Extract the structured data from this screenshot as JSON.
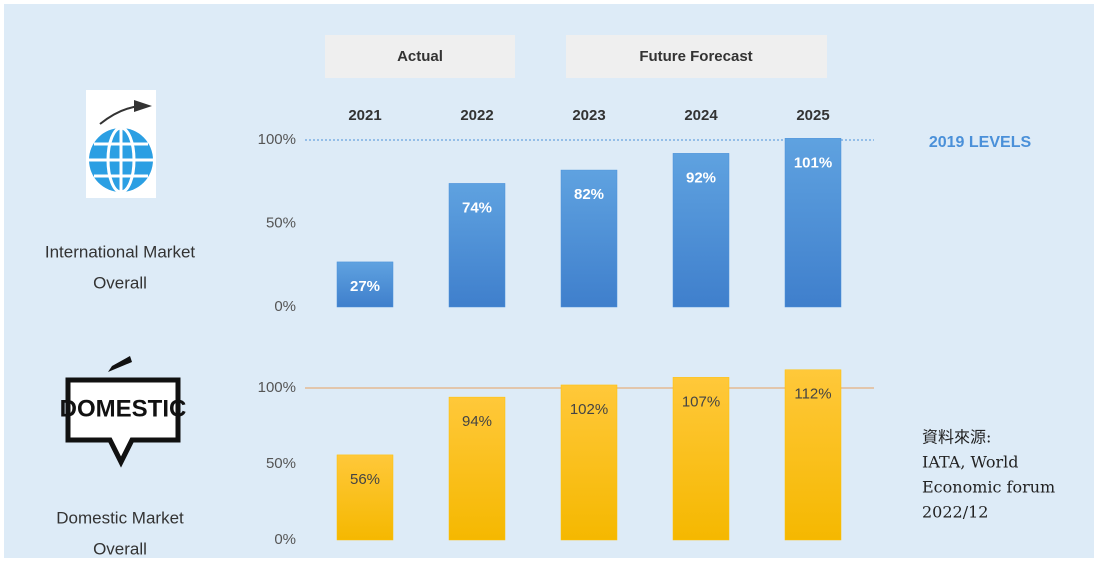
{
  "headers": {
    "actual": "Actual",
    "forecast": "Future Forecast"
  },
  "source": [
    "資料來源:",
    "IATA, World",
    "Economic forum",
    "2022/12"
  ],
  "chart_data": [
    {
      "type": "bar",
      "label": [
        "International Market",
        "Overall"
      ],
      "categories": [
        "2021",
        "2022",
        "2023",
        "2024",
        "2025"
      ],
      "values": [
        27,
        74,
        82,
        92,
        101
      ],
      "value_labels": [
        "27%",
        "74%",
        "82%",
        "92%",
        "101%"
      ],
      "color": "#4a90d9",
      "ylim": [
        0,
        100
      ],
      "yticks": [
        {
          "value": 0,
          "label": "0%"
        },
        {
          "value": 50,
          "label": "50%"
        },
        {
          "value": 100,
          "label": "100%"
        }
      ],
      "reference": 100,
      "reference_label": "2019 LEVELS",
      "reference_color": "#4a90d9"
    },
    {
      "type": "bar",
      "label": [
        "Domestic Market",
        "Overall"
      ],
      "values": [
        56,
        94,
        102,
        107,
        112
      ],
      "value_labels": [
        "56%",
        "94%",
        "102%",
        "107%",
        "112%"
      ],
      "color": "#ffc000",
      "ylim": [
        0,
        100
      ],
      "yticks": [
        {
          "value": 0,
          "label": "0%"
        },
        {
          "value": 50,
          "label": "50%"
        },
        {
          "value": 100,
          "label": "100%"
        }
      ],
      "reference": 100,
      "reference_color": "#e8a060"
    }
  ]
}
